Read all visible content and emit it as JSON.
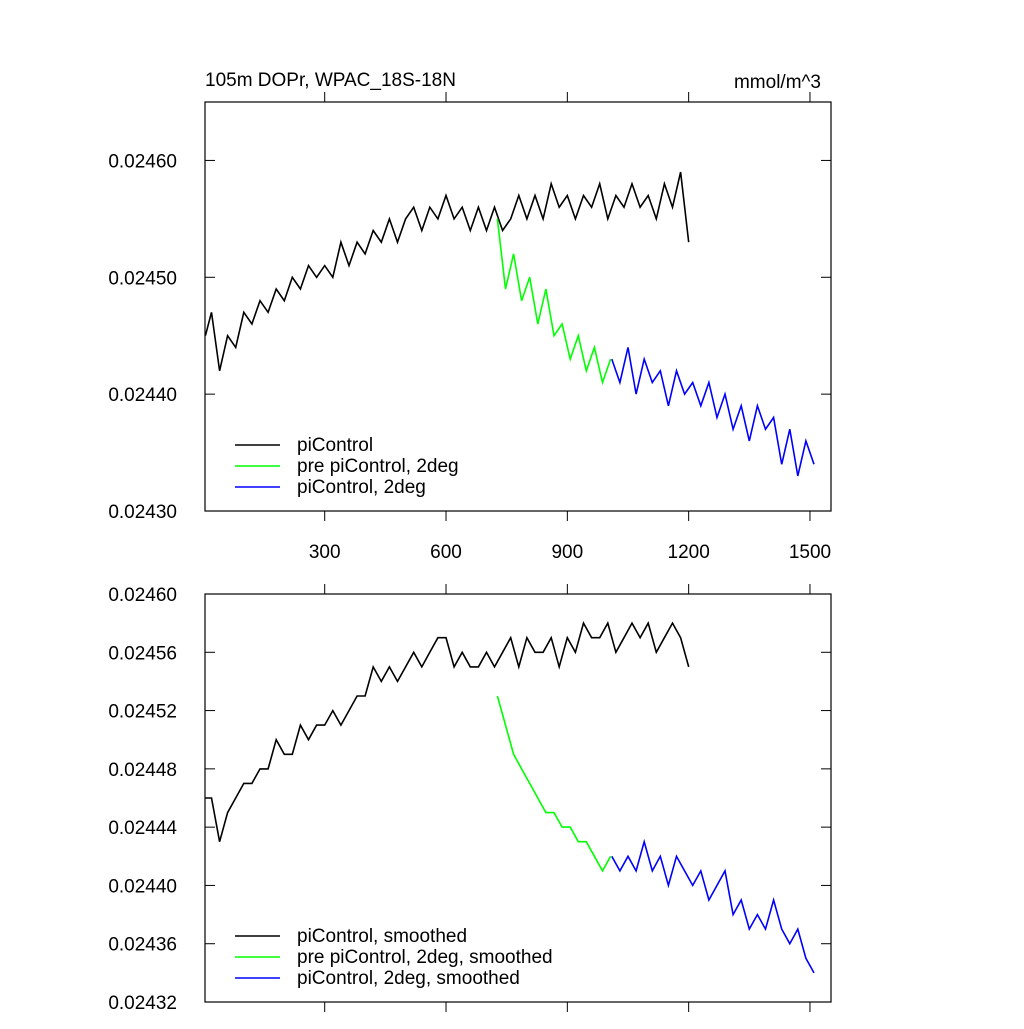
{
  "chart_data": [
    {
      "type": "line",
      "title": "105m DOPr, WPAC_18S-18N",
      "subtitle": "mmol/m^3",
      "xlim": [
        4,
        1552
      ],
      "xticks": [
        300,
        600,
        900,
        1200,
        1500
      ],
      "show_xtick_labels": true,
      "ylim": [
        0.0243,
        0.02465
      ],
      "yticks": [
        {
          "value": 0.0243,
          "label": "0.02430"
        },
        {
          "value": 0.0244,
          "label": "0.02440"
        },
        {
          "value": 0.0245,
          "label": "0.02450"
        },
        {
          "value": 0.0246,
          "label": "0.02460"
        }
      ],
      "legend": "lower left",
      "series": [
        {
          "name": "piControl",
          "color": "#000000",
          "x": [
            5,
            20,
            40,
            60,
            80,
            100,
            120,
            140,
            160,
            180,
            200,
            220,
            240,
            260,
            280,
            300,
            320,
            340,
            360,
            380,
            400,
            420,
            440,
            460,
            480,
            500,
            520,
            540,
            560,
            580,
            600,
            620,
            640,
            660,
            680,
            700,
            720,
            740,
            760,
            780,
            800,
            820,
            840,
            860,
            880,
            900,
            920,
            940,
            960,
            980,
            1000,
            1020,
            1040,
            1060,
            1080,
            1100,
            1120,
            1140,
            1160,
            1180,
            1200
          ],
          "values": [
            0.02445,
            0.02447,
            0.02442,
            0.02445,
            0.02444,
            0.02447,
            0.02446,
            0.02448,
            0.02447,
            0.02449,
            0.02448,
            0.0245,
            0.02449,
            0.02451,
            0.0245,
            0.02451,
            0.0245,
            0.02453,
            0.02451,
            0.02453,
            0.02452,
            0.02454,
            0.02453,
            0.02455,
            0.02453,
            0.02455,
            0.02456,
            0.02454,
            0.02456,
            0.02455,
            0.02457,
            0.02455,
            0.02456,
            0.02454,
            0.02456,
            0.02454,
            0.02456,
            0.02454,
            0.02455,
            0.02457,
            0.02455,
            0.02457,
            0.02455,
            0.02458,
            0.02456,
            0.02457,
            0.02455,
            0.02457,
            0.02456,
            0.02458,
            0.02455,
            0.02457,
            0.02456,
            0.02458,
            0.02456,
            0.02457,
            0.02455,
            0.02458,
            0.02456,
            0.02459,
            0.02453
          ]
        },
        {
          "name": "pre piControl, 2deg",
          "color": "#00ff00",
          "x": [
            727,
            747,
            767,
            787,
            807,
            827,
            847,
            867,
            887,
            907,
            927,
            947,
            967,
            987,
            1007
          ],
          "values": [
            0.02455,
            0.02449,
            0.02452,
            0.02448,
            0.0245,
            0.02446,
            0.02449,
            0.02445,
            0.02446,
            0.02443,
            0.02445,
            0.02442,
            0.02444,
            0.02441,
            0.02443
          ]
        },
        {
          "name": "piControl, 2deg",
          "color": "#0000ff",
          "x": [
            1010,
            1030,
            1050,
            1070,
            1090,
            1110,
            1130,
            1150,
            1170,
            1190,
            1210,
            1230,
            1250,
            1270,
            1290,
            1310,
            1330,
            1350,
            1370,
            1390,
            1410,
            1430,
            1450,
            1470,
            1490,
            1510
          ],
          "values": [
            0.02443,
            0.02441,
            0.02444,
            0.0244,
            0.02443,
            0.02441,
            0.02442,
            0.02439,
            0.02442,
            0.0244,
            0.02441,
            0.02439,
            0.02441,
            0.02438,
            0.0244,
            0.02437,
            0.02439,
            0.02436,
            0.02439,
            0.02437,
            0.02438,
            0.02434,
            0.02437,
            0.02433,
            0.02436,
            0.02434
          ]
        }
      ]
    },
    {
      "type": "line",
      "xlim": [
        4,
        1552
      ],
      "xticks": [
        300,
        600,
        900,
        1200,
        1500
      ],
      "show_xtick_labels": false,
      "ylim": [
        0.02432,
        0.0246
      ],
      "yticks": [
        {
          "value": 0.02432,
          "label": "0.02432"
        },
        {
          "value": 0.02436,
          "label": "0.02436"
        },
        {
          "value": 0.0244,
          "label": "0.02440"
        },
        {
          "value": 0.02444,
          "label": "0.02444"
        },
        {
          "value": 0.02448,
          "label": "0.02448"
        },
        {
          "value": 0.02452,
          "label": "0.02452"
        },
        {
          "value": 0.02456,
          "label": "0.02456"
        },
        {
          "value": 0.0246,
          "label": "0.02460"
        }
      ],
      "legend": "lower left",
      "series": [
        {
          "name": "piControl, smoothed",
          "color": "#000000",
          "x": [
            5,
            20,
            40,
            60,
            80,
            100,
            120,
            140,
            160,
            180,
            200,
            220,
            240,
            260,
            280,
            300,
            320,
            340,
            360,
            380,
            400,
            420,
            440,
            460,
            480,
            500,
            520,
            540,
            560,
            580,
            600,
            620,
            640,
            660,
            680,
            700,
            720,
            740,
            760,
            780,
            800,
            820,
            840,
            860,
            880,
            900,
            920,
            940,
            960,
            980,
            1000,
            1020,
            1040,
            1060,
            1080,
            1100,
            1120,
            1140,
            1160,
            1180,
            1200
          ],
          "values": [
            0.02446,
            0.02446,
            0.02443,
            0.02445,
            0.02446,
            0.02447,
            0.02447,
            0.02448,
            0.02448,
            0.0245,
            0.02449,
            0.02449,
            0.02451,
            0.0245,
            0.02451,
            0.02451,
            0.02452,
            0.02451,
            0.02452,
            0.02453,
            0.02453,
            0.02455,
            0.02454,
            0.02455,
            0.02454,
            0.02455,
            0.02456,
            0.02455,
            0.02456,
            0.02457,
            0.02457,
            0.02455,
            0.02456,
            0.02455,
            0.02455,
            0.02456,
            0.02455,
            0.02456,
            0.02457,
            0.02455,
            0.02457,
            0.02456,
            0.02456,
            0.02457,
            0.02455,
            0.02457,
            0.02456,
            0.02458,
            0.02457,
            0.02457,
            0.02458,
            0.02456,
            0.02457,
            0.02458,
            0.02457,
            0.02458,
            0.02456,
            0.02457,
            0.02458,
            0.02457,
            0.02455
          ]
        },
        {
          "name": "pre piControl, 2deg, smoothed",
          "color": "#00ff00",
          "x": [
            727,
            747,
            767,
            787,
            807,
            827,
            847,
            867,
            887,
            907,
            927,
            947,
            967,
            987,
            1007
          ],
          "values": [
            0.02453,
            0.02451,
            0.02449,
            0.02448,
            0.02447,
            0.02446,
            0.02445,
            0.02445,
            0.02444,
            0.02444,
            0.02443,
            0.02443,
            0.02442,
            0.02441,
            0.02442
          ]
        },
        {
          "name": "piControl, 2deg, smoothed",
          "color": "#0000ff",
          "x": [
            1010,
            1030,
            1050,
            1070,
            1090,
            1110,
            1130,
            1150,
            1170,
            1190,
            1210,
            1230,
            1250,
            1270,
            1290,
            1310,
            1330,
            1350,
            1370,
            1390,
            1410,
            1430,
            1450,
            1470,
            1490,
            1510
          ],
          "values": [
            0.02442,
            0.02441,
            0.02442,
            0.02441,
            0.02443,
            0.02441,
            0.02442,
            0.0244,
            0.02442,
            0.02441,
            0.0244,
            0.02441,
            0.02439,
            0.0244,
            0.02441,
            0.02438,
            0.02439,
            0.02437,
            0.02438,
            0.02437,
            0.02439,
            0.02437,
            0.02436,
            0.02437,
            0.02435,
            0.02434
          ]
        }
      ]
    }
  ]
}
